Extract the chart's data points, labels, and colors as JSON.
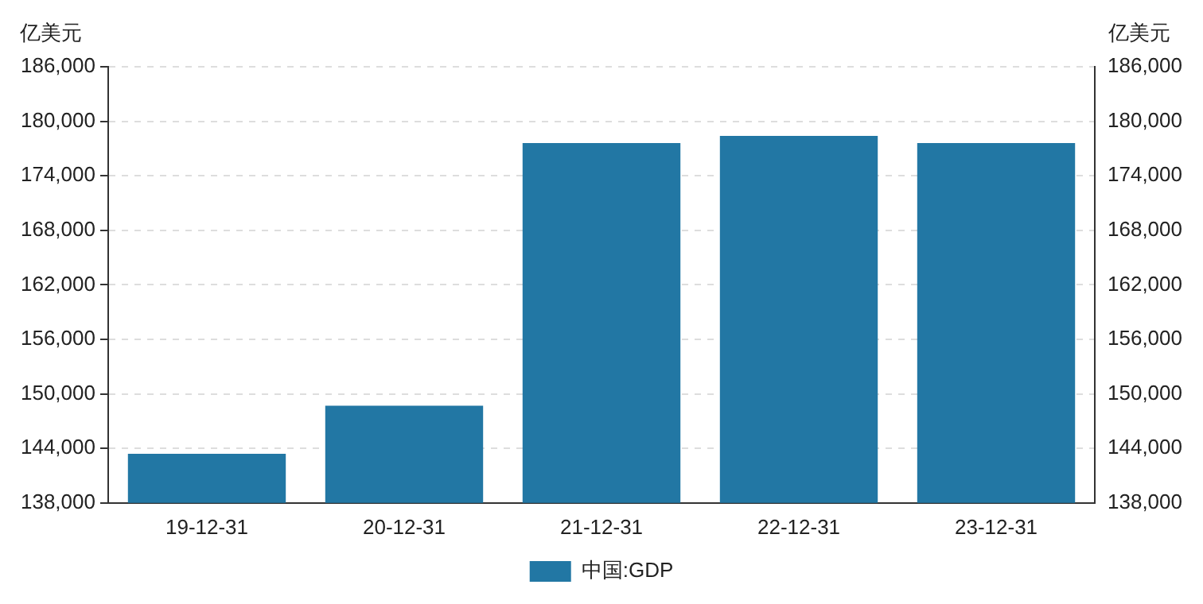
{
  "chart_data": {
    "type": "bar",
    "ylabel": "亿美元",
    "y2label": "亿美元",
    "categories": [
      "19-12-31",
      "20-12-31",
      "21-12-31",
      "22-12-31",
      "23-12-31"
    ],
    "series": [
      {
        "name": "中国:GDP",
        "color": "#2277a4",
        "values": [
          143400,
          148700,
          177600,
          178400,
          177600
        ]
      }
    ],
    "ylim": [
      138000,
      186000
    ],
    "yticks": [
      {
        "value": 138000,
        "label": "138,000"
      },
      {
        "value": 144000,
        "label": "144,000"
      },
      {
        "value": 150000,
        "label": "150,000"
      },
      {
        "value": 156000,
        "label": "156,000"
      },
      {
        "value": 162000,
        "label": "162,000"
      },
      {
        "value": 168000,
        "label": "168,000"
      },
      {
        "value": 174000,
        "label": "174,000"
      },
      {
        "value": 180000,
        "label": "180,000"
      },
      {
        "value": 186000,
        "label": "186,000"
      }
    ],
    "y2lim": [
      138000,
      186000
    ],
    "y2ticks": [
      {
        "value": 138000,
        "label": "138,000"
      },
      {
        "value": 144000,
        "label": "144,000"
      },
      {
        "value": 150000,
        "label": "150,000"
      },
      {
        "value": 156000,
        "label": "156,000"
      },
      {
        "value": 162000,
        "label": "162,000"
      },
      {
        "value": 168000,
        "label": "168,000"
      },
      {
        "value": 174000,
        "label": "174,000"
      },
      {
        "value": 180000,
        "label": "180,000"
      },
      {
        "value": 186000,
        "label": "186,000"
      }
    ],
    "grid": "y",
    "legend": "bottom"
  }
}
